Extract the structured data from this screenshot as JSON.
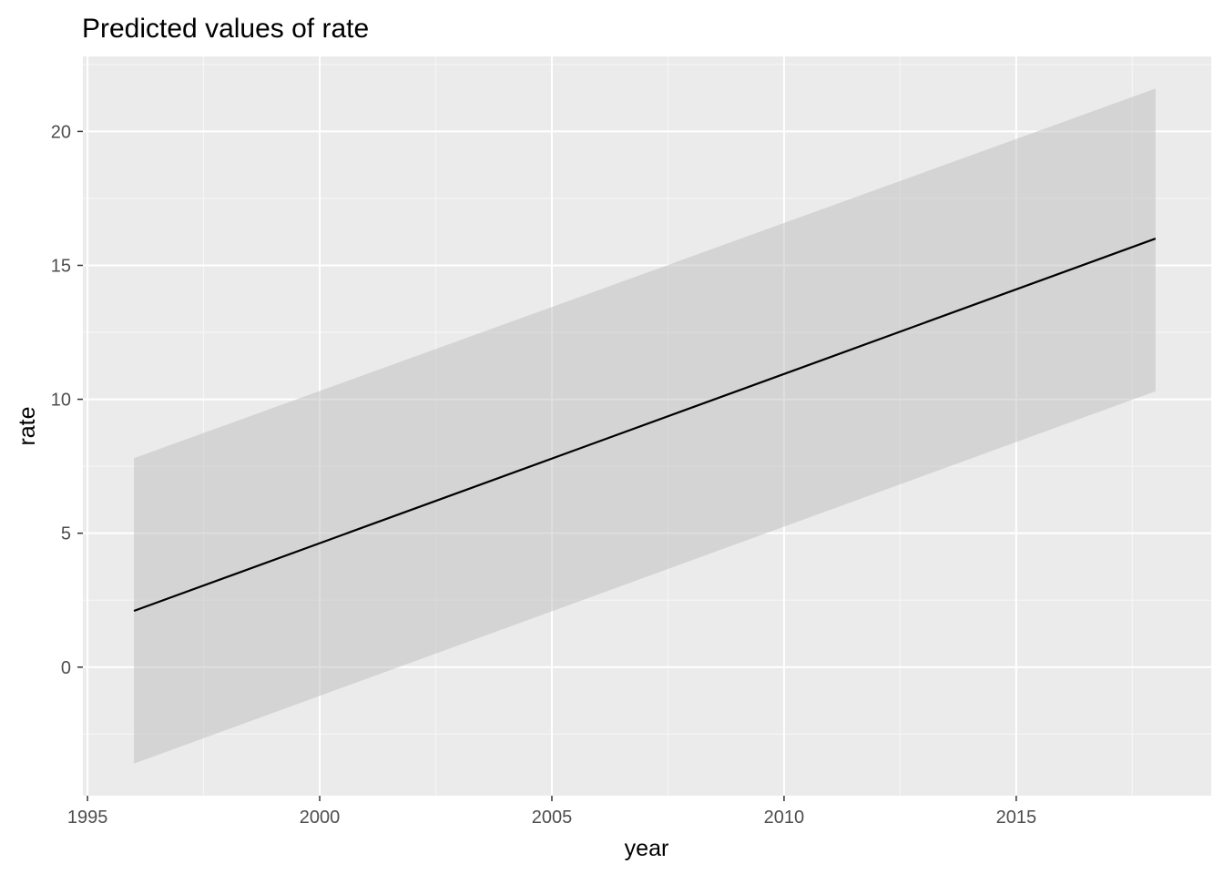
{
  "chart_data": {
    "type": "line",
    "title": "Predicted values of rate",
    "xlabel": "year",
    "ylabel": "rate",
    "xlim": [
      1994.9,
      2019.2
    ],
    "ylim": [
      -4.8,
      22.8
    ],
    "x_ticks": [
      1995,
      2000,
      2005,
      2010,
      2015
    ],
    "x_tick_labels": [
      "1995",
      "2000",
      "2005",
      "2010",
      "2015"
    ],
    "y_ticks": [
      0,
      5,
      10,
      15,
      20
    ],
    "y_tick_labels": [
      "0",
      "5",
      "10",
      "15",
      "20"
    ],
    "grid": true,
    "series": [
      {
        "x": [
          1996,
          2018
        ],
        "y": [
          2.1,
          16.0
        ],
        "y_lower": [
          -3.6,
          10.3
        ],
        "y_upper": [
          7.8,
          21.6
        ]
      }
    ],
    "colors": {
      "panel_background": "#ebebeb",
      "grid_major": "#ffffff",
      "grid_minor": "#f5f5f5",
      "ribbon": "#bebebe",
      "line": "#000000",
      "tick": "#333333"
    }
  }
}
